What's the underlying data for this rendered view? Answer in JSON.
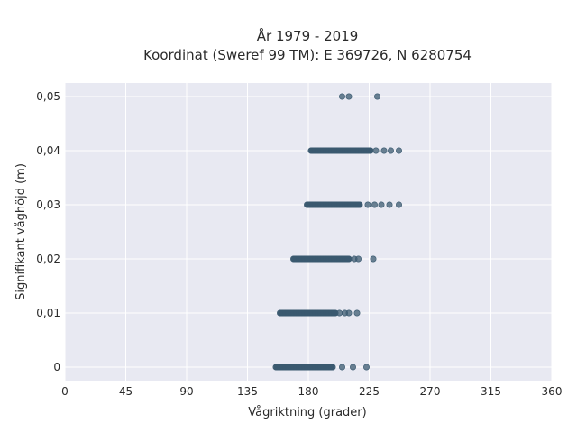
{
  "chart_data": {
    "type": "scatter",
    "title": "År 1979 - 2019",
    "subtitle": "Koordinat (Sweref 99 TM): E 369726, N 6280754",
    "xlabel": "Vågriktning (grader)",
    "ylabel": "Signifikant våghöjd (m)",
    "xlim": [
      0,
      360
    ],
    "ylim": [
      -0.0025,
      0.0525
    ],
    "x_ticks": [
      "0",
      "45",
      "90",
      "135",
      "180",
      "225",
      "270",
      "315",
      "360"
    ],
    "y_ticks": [
      "0",
      "0,01",
      "0,02",
      "0,03",
      "0,04",
      "0,05"
    ],
    "grid": true,
    "marker_color": "#3b5a70",
    "plot_background": "#e8e9f2",
    "series": [
      {
        "clusters": [
          {
            "y": 0.0,
            "x_range": [
              156,
              198
            ],
            "outliers": [
              205,
              213,
              223
            ]
          },
          {
            "y": 0.01,
            "x_range": [
              159,
              200
            ],
            "outliers": [
              203,
              207,
              210,
              216
            ]
          },
          {
            "y": 0.02,
            "x_range": [
              169,
              210
            ],
            "outliers": [
              214,
              217,
              228
            ]
          },
          {
            "y": 0.03,
            "x_range": [
              179,
              218
            ],
            "outliers": [
              224,
              229,
              234,
              240,
              247
            ]
          },
          {
            "y": 0.04,
            "x_range": [
              182,
              226
            ],
            "outliers": [
              230,
              236,
              241,
              247
            ]
          }
        ],
        "points": [
          {
            "x": 205,
            "y": 0.05
          },
          {
            "x": 210,
            "y": 0.05
          },
          {
            "x": 231,
            "y": 0.05
          }
        ]
      }
    ]
  }
}
